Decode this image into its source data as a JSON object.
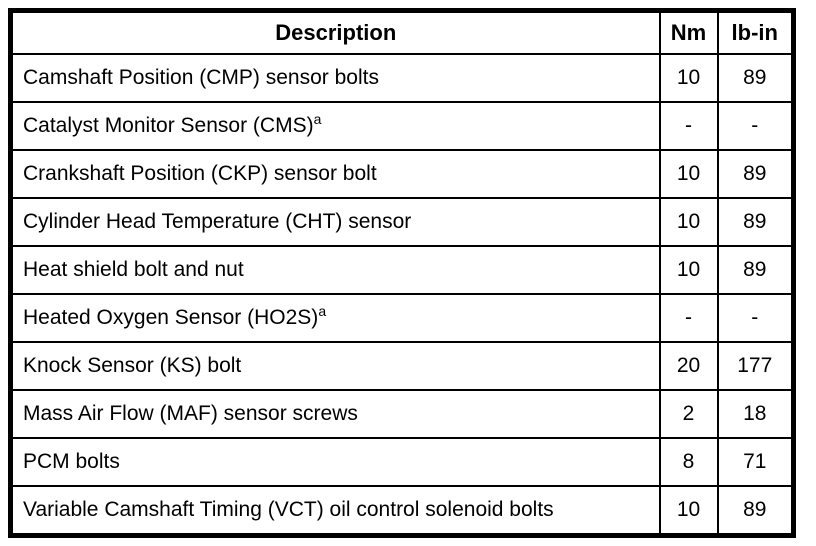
{
  "table": {
    "headers": {
      "description": "Description",
      "nm": "Nm",
      "lb_in": "lb-in"
    },
    "rows": [
      {
        "description": "Camshaft Position (CMP) sensor bolts",
        "sup": "",
        "nm": "10",
        "lb_in": "89"
      },
      {
        "description": "Catalyst Monitor Sensor (CMS)",
        "sup": "a",
        "nm": "-",
        "lb_in": "-"
      },
      {
        "description": "Crankshaft Position (CKP) sensor bolt",
        "sup": "",
        "nm": "10",
        "lb_in": "89"
      },
      {
        "description": "Cylinder Head Temperature (CHT) sensor",
        "sup": "",
        "nm": "10",
        "lb_in": "89"
      },
      {
        "description": "Heat shield bolt and nut",
        "sup": "",
        "nm": "10",
        "lb_in": "89"
      },
      {
        "description": "Heated Oxygen Sensor (HO2S)",
        "sup": "a",
        "nm": "-",
        "lb_in": "-"
      },
      {
        "description": "Knock Sensor (KS) bolt",
        "sup": "",
        "nm": "20",
        "lb_in": "177"
      },
      {
        "description": "Mass Air Flow (MAF) sensor screws",
        "sup": "",
        "nm": "2",
        "lb_in": "18"
      },
      {
        "description": "PCM bolts",
        "sup": "",
        "nm": "8",
        "lb_in": "71"
      },
      {
        "description": "Variable Camshaft Timing (VCT) oil control solenoid bolts",
        "sup": "",
        "nm": "10",
        "lb_in": "89"
      }
    ]
  }
}
